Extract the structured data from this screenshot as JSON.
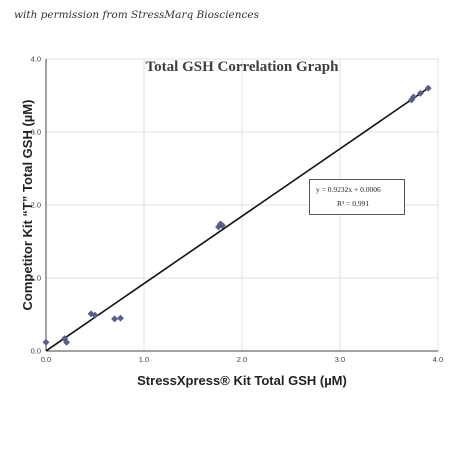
{
  "credit": "with permission from StressMarq Biosciences",
  "chart_data": {
    "type": "scatter",
    "title": "Total GSH Correlation Graph",
    "xlabel": "StressXpress® Kit Total GSH (µM)",
    "ylabel": "Competitor Kit “T” Total GSH (µM)",
    "xlim": [
      0,
      4
    ],
    "ylim": [
      0,
      4
    ],
    "xticks": [
      "0.0",
      "1.0",
      "2.0",
      "3.0",
      "4.0"
    ],
    "yticks": [
      "0.0",
      "1.0",
      "2.0",
      "3.0",
      "4.0"
    ],
    "grid": true,
    "series": [
      {
        "color": "#5b5f8c",
        "points": [
          {
            "x": 0.0,
            "y": 0.12
          },
          {
            "x": 0.19,
            "y": 0.17
          },
          {
            "x": 0.21,
            "y": 0.12
          },
          {
            "x": 0.46,
            "y": 0.51
          },
          {
            "x": 0.5,
            "y": 0.49
          },
          {
            "x": 0.7,
            "y": 0.44
          },
          {
            "x": 0.76,
            "y": 0.45
          },
          {
            "x": 1.76,
            "y": 1.7
          },
          {
            "x": 1.78,
            "y": 1.74
          },
          {
            "x": 1.8,
            "y": 1.72
          },
          {
            "x": 3.73,
            "y": 3.44
          },
          {
            "x": 3.75,
            "y": 3.48
          },
          {
            "x": 3.82,
            "y": 3.53
          },
          {
            "x": 3.9,
            "y": 3.6
          }
        ]
      }
    ],
    "trendline": {
      "slope": 0.9232,
      "intercept": 0.0006,
      "x_range": [
        0,
        3.92
      ],
      "color": "#111111"
    },
    "equation": {
      "line1": "y =  0.9232x +   0.0006",
      "line2": "R² = 0.991"
    }
  }
}
